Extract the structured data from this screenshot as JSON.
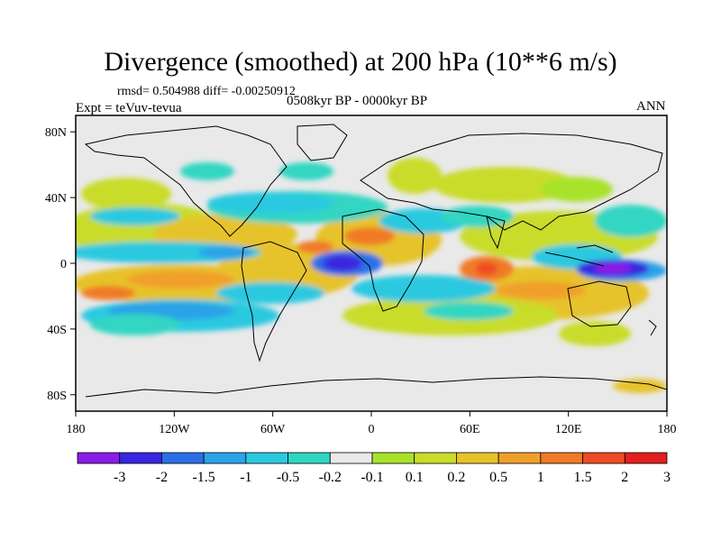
{
  "figure": {
    "title": "Divergence (smoothed) at 200 hPa (10**6 m/s)",
    "stats": "rmsd= 0.504988 diff= -0.00250912",
    "expt": "Expt = teVuv-tevua",
    "period": "0508kyr BP - 0000kyr BP",
    "season": "ANN"
  },
  "axes": {
    "x_ticks": [
      {
        "value": -180,
        "label": "180"
      },
      {
        "value": -120,
        "label": "120W"
      },
      {
        "value": -60,
        "label": "60W"
      },
      {
        "value": 0,
        "label": "0"
      },
      {
        "value": 60,
        "label": "60E"
      },
      {
        "value": 120,
        "label": "120E"
      },
      {
        "value": 180,
        "label": "180"
      }
    ],
    "y_ticks": [
      {
        "value": 80,
        "label": "80N"
      },
      {
        "value": 40,
        "label": "40N"
      },
      {
        "value": 0,
        "label": "0"
      },
      {
        "value": -40,
        "label": "40S"
      },
      {
        "value": -80,
        "label": "80S"
      }
    ],
    "lon_range": [
      -180,
      180
    ],
    "lat_range": [
      -90,
      90
    ]
  },
  "colorbar": {
    "colors": [
      "#8b1be8",
      "#3a25e0",
      "#2b6fe8",
      "#2aa3e8",
      "#2bc9e0",
      "#30d6c2",
      "#e9e9e9",
      "#a9e22a",
      "#c9dc2a",
      "#e6c32a",
      "#f0a02a",
      "#f07a26",
      "#ee4b22",
      "#e21e1e"
    ],
    "labels": [
      "-3",
      "-2",
      "-1.5",
      "-1",
      "-0.5",
      "-0.2",
      "-0.1",
      "0.1",
      "0.2",
      "0.5",
      "1",
      "1.5",
      "2",
      "3"
    ]
  },
  "map_data": {
    "field": "200 hPa divergence difference (smoothed)",
    "units": "10**6 m/s",
    "features": [
      {
        "lon": -15,
        "lat": 0,
        "value": -3,
        "label": "strong convergence, tropical Atlantic"
      },
      {
        "lon": 150,
        "lat": 0,
        "value": -3,
        "label": "strong convergence, western Pacific"
      },
      {
        "lon": 60,
        "lat": 0,
        "value": 1.5,
        "label": "divergence, Indian Ocean"
      },
      {
        "lon": -150,
        "lat": -10,
        "value": 1.5,
        "label": "divergence, central Pacific"
      }
    ]
  }
}
